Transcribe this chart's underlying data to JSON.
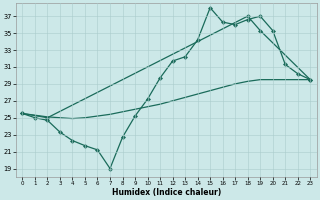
{
  "bg_color": "#cce8e8",
  "line_color": "#1a6b5a",
  "grid_color": "#aacccc",
  "xlabel": "Humidex (Indice chaleur)",
  "xlim": [
    -0.5,
    23.5
  ],
  "ylim": [
    18.0,
    38.5
  ],
  "yticks": [
    19,
    21,
    23,
    25,
    27,
    29,
    31,
    33,
    35,
    37
  ],
  "xticks": [
    0,
    1,
    2,
    3,
    4,
    5,
    6,
    7,
    8,
    9,
    10,
    11,
    12,
    13,
    14,
    15,
    16,
    17,
    18,
    19,
    20,
    21,
    22,
    23
  ],
  "series": [
    {
      "x": [
        0,
        1,
        2,
        3,
        4,
        5,
        6,
        7,
        8,
        9,
        10,
        11,
        12,
        13,
        14,
        15,
        16,
        17,
        18,
        19,
        20,
        21,
        22,
        23
      ],
      "y": [
        25.5,
        25.0,
        24.7,
        23.3,
        22.3,
        21.7,
        21.2,
        19.0,
        22.7,
        25.2,
        27.2,
        29.7,
        31.7,
        32.2,
        34.2,
        38.0,
        36.3,
        36.0,
        36.6,
        37.0,
        35.3,
        31.3,
        30.2,
        29.5
      ],
      "marker": "D",
      "markersize": 2.2,
      "linewidth": 0.9
    },
    {
      "x": [
        0,
        2,
        18,
        19,
        23
      ],
      "y": [
        25.5,
        25.0,
        37.0,
        35.3,
        29.5
      ],
      "marker": "D",
      "markersize": 2.2,
      "linewidth": 0.9
    },
    {
      "x": [
        0,
        1,
        2,
        3,
        4,
        5,
        6,
        7,
        8,
        9,
        10,
        11,
        12,
        13,
        14,
        15,
        16,
        17,
        18,
        19,
        20,
        21,
        22,
        23
      ],
      "y": [
        25.5,
        25.3,
        25.1,
        25.0,
        24.9,
        25.0,
        25.2,
        25.4,
        25.7,
        26.0,
        26.3,
        26.6,
        27.0,
        27.4,
        27.8,
        28.2,
        28.6,
        29.0,
        29.3,
        29.5,
        29.5,
        29.5,
        29.5,
        29.5
      ],
      "marker": null,
      "markersize": 0,
      "linewidth": 0.9
    }
  ],
  "tick_fontsize": 5.0,
  "xlabel_fontsize": 5.5,
  "figwidth": 3.2,
  "figheight": 2.0,
  "dpi": 100
}
